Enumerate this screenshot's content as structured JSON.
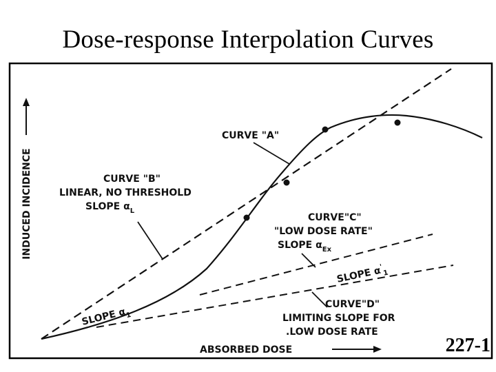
{
  "slide": {
    "title": "Dose-response Interpolation Curves",
    "page_number": "227-1"
  },
  "axes": {
    "y_label": "INDUCED INCIDENCE",
    "x_label": "ABSORBED DOSE"
  },
  "labels": {
    "curve_a": "CURVE \"A\"",
    "curve_b_line1": "CURVE \"B\"",
    "curve_b_line2": "LINEAR, NO THRESHOLD",
    "curve_b_line3": "SLOPE α",
    "curve_b_sub": "L",
    "curve_c_line1": "CURVE\"C\"",
    "curve_c_line2": "\"LOW DOSE RATE\"",
    "curve_c_line3": "SLOPE α",
    "curve_c_sub": "Ex",
    "slope_a1_main": "SLOPE α",
    "slope_a1_sub": "1",
    "slope_a1_sub_quote": "'",
    "curve_d_line1": "CURVE\"D\"",
    "curve_d_line2": "LIMITING SLOPE FOR",
    "curve_d_line3": ".LOW DOSE RATE",
    "slope_a1_low_main": "SLOPE α",
    "slope_a1_low_sub": "1"
  },
  "colors": {
    "ink": "#111111",
    "frame": "#000000"
  }
}
